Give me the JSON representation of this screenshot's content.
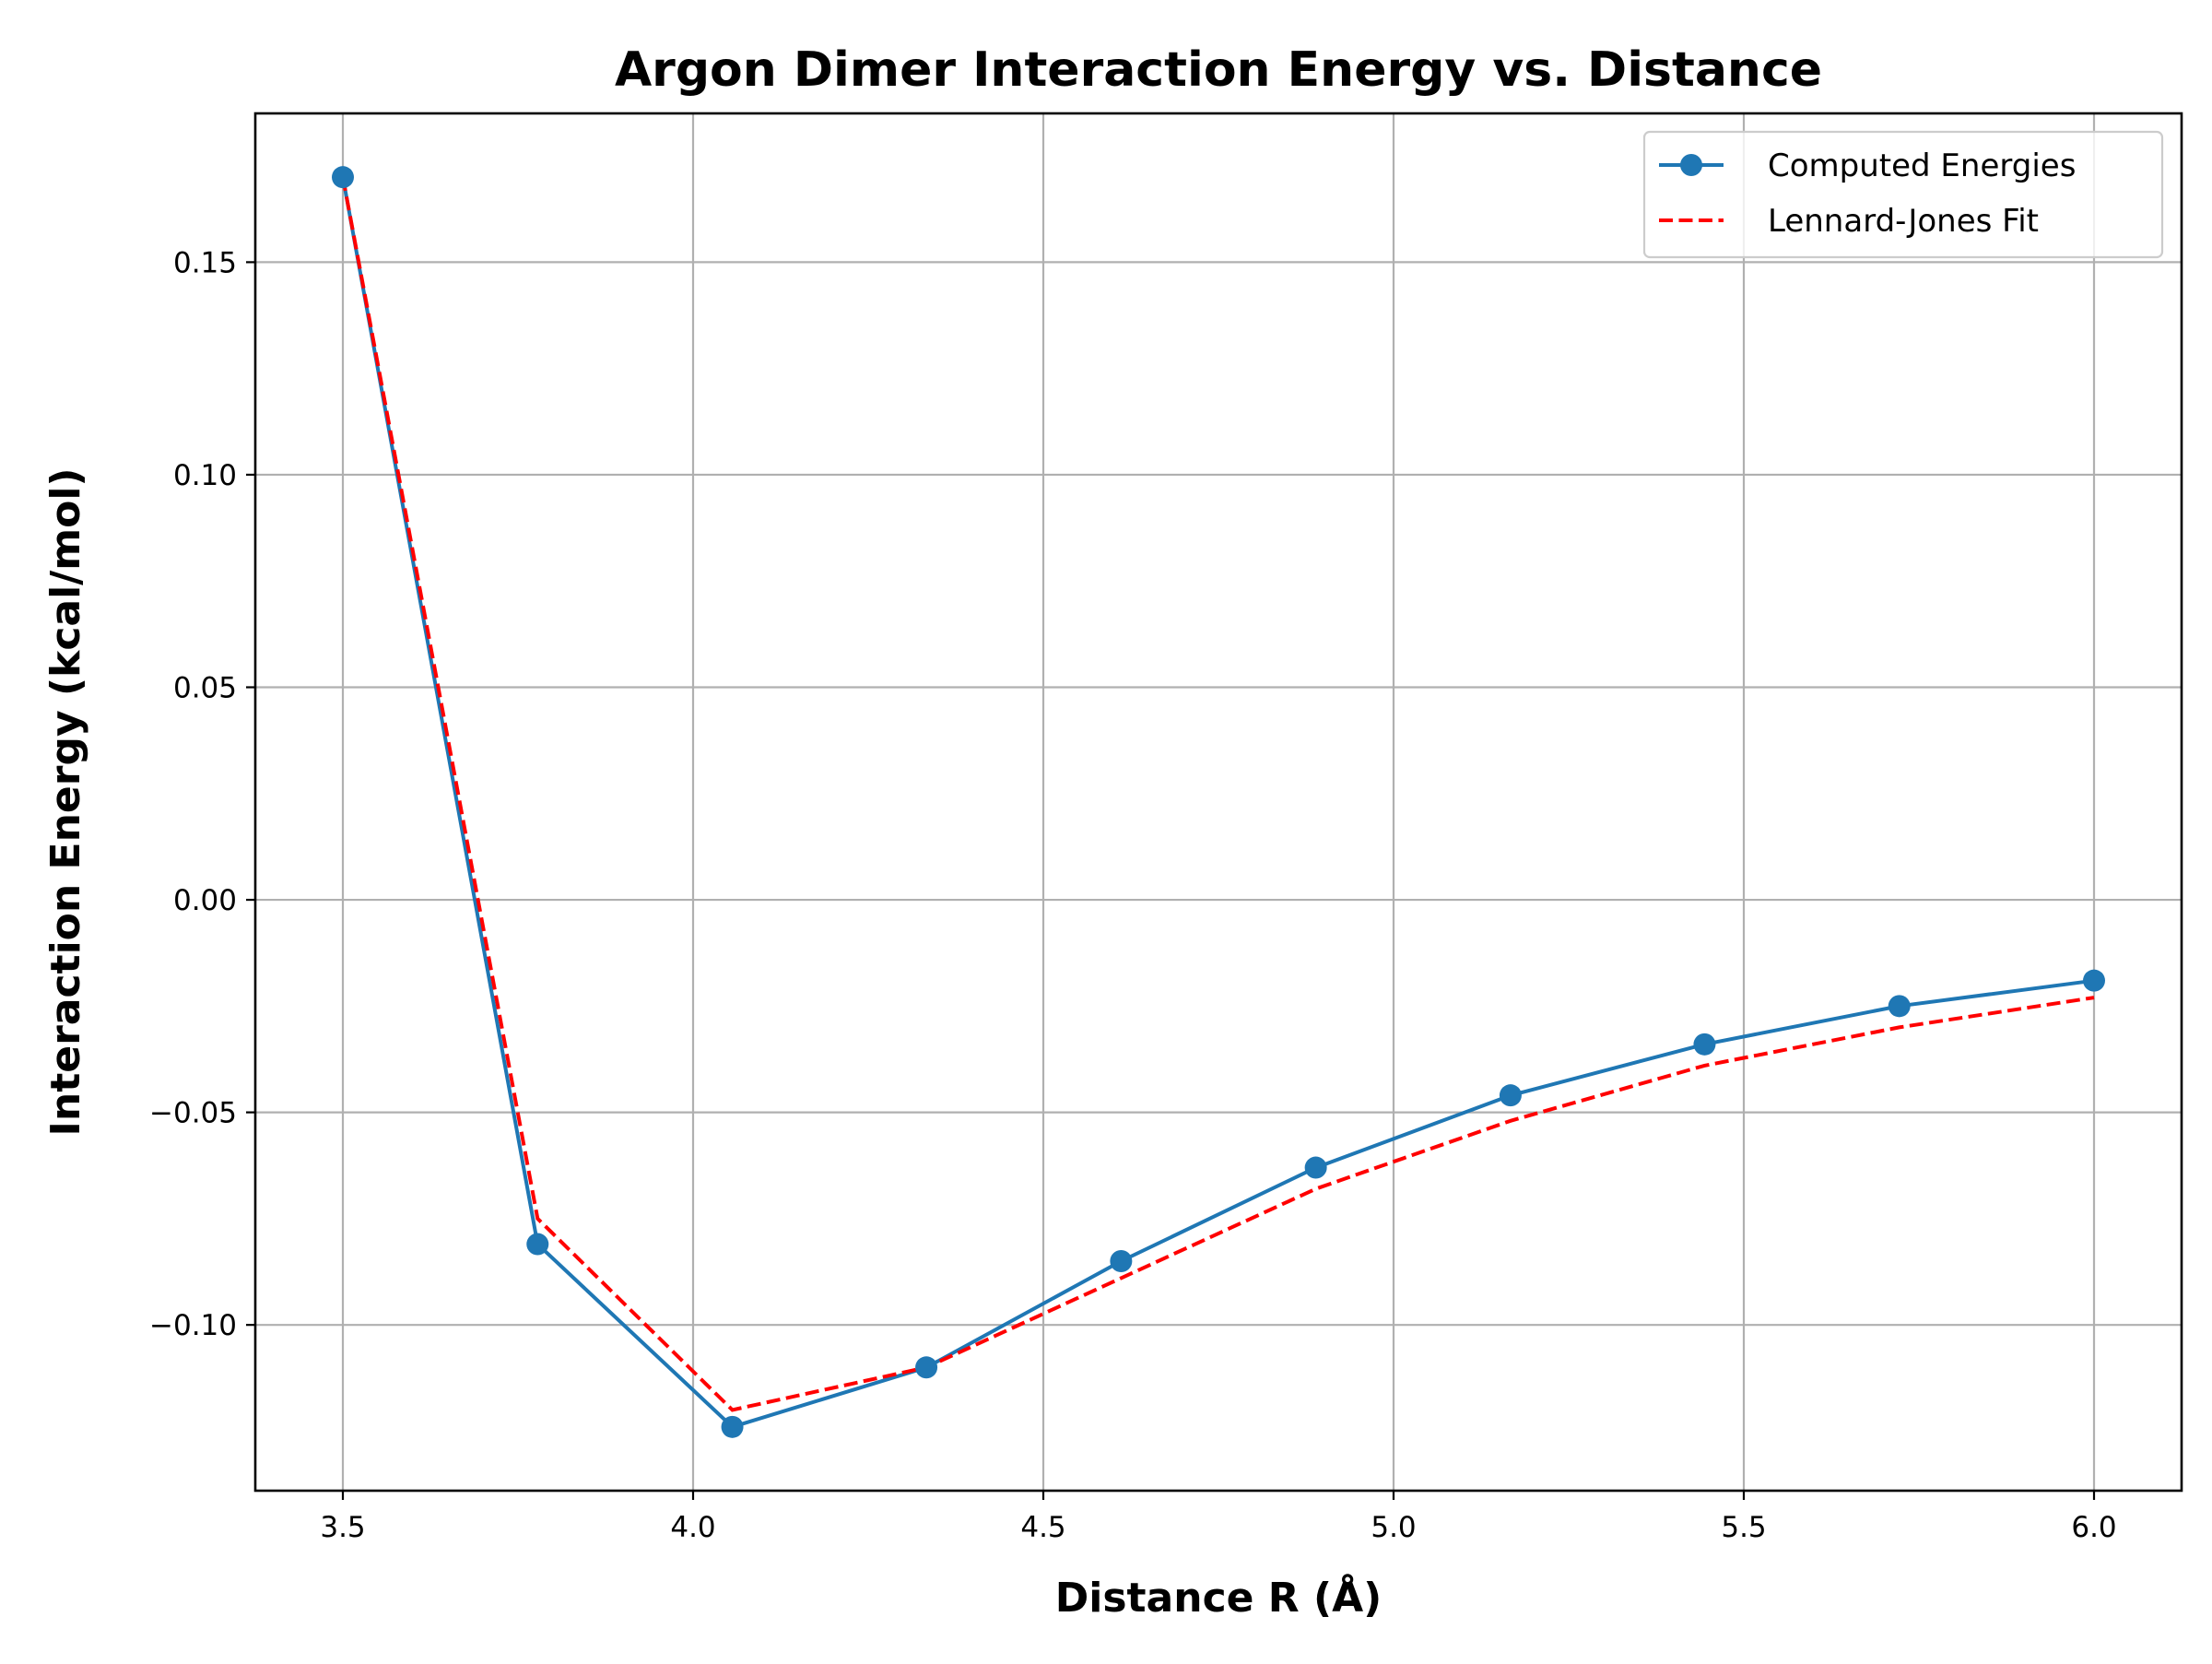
{
  "chart_data": {
    "type": "line",
    "title": "Argon Dimer Interaction Energy vs. Distance",
    "xlabel": "Distance R (Å)",
    "ylabel": "Interaction Energy (kcal/mol)",
    "xlim": [
      3.375,
      6.125
    ],
    "ylim": [
      -0.139,
      0.185
    ],
    "xticks": [
      3.5,
      4.0,
      4.5,
      5.0,
      5.5,
      6.0
    ],
    "xtick_labels": [
      "3.5",
      "4.0",
      "4.5",
      "5.0",
      "5.5",
      "6.0"
    ],
    "yticks": [
      0.15,
      0.1,
      0.05,
      0.0,
      -0.05,
      -0.1
    ],
    "ytick_labels": [
      "0.15",
      "0.10",
      "0.05",
      "0.00",
      "−0.05",
      "−0.10"
    ],
    "grid": true,
    "legend_position": "top-right",
    "series": [
      {
        "name": "Computed Energies",
        "color": "#1f77b4",
        "style": "solid",
        "marker": "circle",
        "x": [
          3.5,
          3.778,
          4.056,
          4.333,
          4.611,
          4.889,
          5.167,
          5.444,
          5.722,
          6.0
        ],
        "y": [
          0.17,
          -0.081,
          -0.124,
          -0.11,
          -0.085,
          -0.063,
          -0.046,
          -0.034,
          -0.025,
          -0.019
        ]
      },
      {
        "name": "Lennard-Jones Fit",
        "color": "#ff0000",
        "style": "dashed",
        "marker": "none",
        "x": [
          3.5,
          3.778,
          4.056,
          4.333,
          4.611,
          4.889,
          5.167,
          5.444,
          5.722,
          6.0
        ],
        "y": [
          0.17,
          -0.075,
          -0.12,
          -0.11,
          -0.089,
          -0.068,
          -0.052,
          -0.039,
          -0.03,
          -0.023
        ]
      }
    ]
  }
}
